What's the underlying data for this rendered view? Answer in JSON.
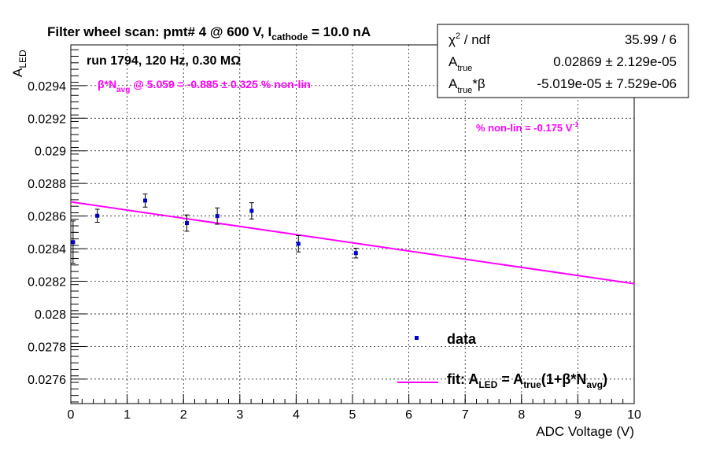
{
  "colors": {
    "data": "#0000cc",
    "fit": "#ff00ff",
    "annotation": "#ff00ff",
    "grid": "#000000",
    "frame": "#000000"
  },
  "chart_data": {
    "type": "scatter",
    "title": {
      "main": "Filter wheel scan: pmt#   4 @   600 V, I",
      "sub": "cathode",
      "tail": " = 10.0 nA"
    },
    "run_label": "run 1794, 120 Hz, 0.30 MΩ",
    "xlabel": "ADC Voltage (V)",
    "ylabel": {
      "main": "A",
      "sub": "LED"
    },
    "xlim": [
      0,
      10
    ],
    "ylim": [
      0.02745,
      0.02965
    ],
    "x_ticks": [
      "0",
      "1",
      "2",
      "3",
      "4",
      "5",
      "6",
      "7",
      "8",
      "9",
      "10"
    ],
    "y_ticks": [
      "0.0276",
      "0.0278",
      "0.028",
      "0.0282",
      "0.0284",
      "0.0286",
      "0.0288",
      "0.029",
      "0.0292",
      "0.0294"
    ],
    "grid": true,
    "series": [
      {
        "name": "data",
        "points": [
          {
            "x": 0.04,
            "y": 0.02844,
            "err": 0.00013
          },
          {
            "x": 0.47,
            "y": 0.028602,
            "err": 4e-05
          },
          {
            "x": 1.32,
            "y": 0.028695,
            "err": 4e-05
          },
          {
            "x": 2.06,
            "y": 0.028557,
            "err": 5e-05
          },
          {
            "x": 2.6,
            "y": 0.0286,
            "err": 5e-05
          },
          {
            "x": 3.21,
            "y": 0.028632,
            "err": 5e-05
          },
          {
            "x": 4.04,
            "y": 0.02843,
            "err": 5e-05
          },
          {
            "x": 5.06,
            "y": 0.028373,
            "err": 3e-05
          }
        ]
      },
      {
        "name": "fit",
        "type": "line",
        "x": [
          0,
          10
        ],
        "y": [
          0.028687,
          0.028185
        ]
      }
    ],
    "stats_box": [
      {
        "label": "χ",
        "label_sup": "2",
        "label_tail": " / ndf",
        "value": "35.99 / 6"
      },
      {
        "label": "A",
        "label_sub": "true",
        "value": "0.02869 ± 2.129e-05"
      },
      {
        "label": "A",
        "label_sub": "true",
        "label_tail": "*β",
        "value": "-5.019e-05 ± 7.529e-06"
      }
    ],
    "annotations": {
      "nonlin_at": {
        "pre": "β*N",
        "sub": "avg",
        "post": " @ 5.059 = -0.885 ± 0.325 % non-lin"
      },
      "slope": {
        "text": "% non-lin = -0.175 V",
        "sup": "-1"
      }
    },
    "legend": {
      "placement": "bottom-right",
      "data_label": "data",
      "fit_label": {
        "p1": "fit: A",
        "s1": "LED",
        "p2": " = A",
        "s2": "true",
        "p3": "(1+β*N",
        "s3": "avg",
        "p4": ")"
      }
    }
  }
}
